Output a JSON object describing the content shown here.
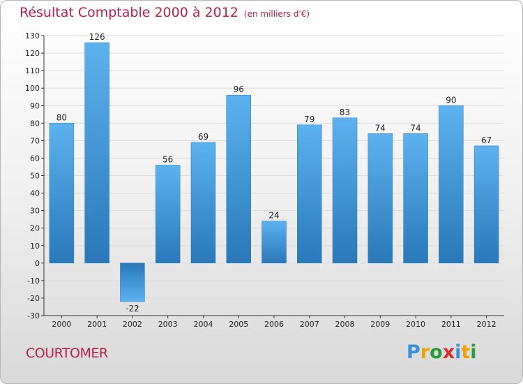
{
  "title": "Résultat Comptable 2000 à 2012",
  "subtitle": "(en milliers d'€)",
  "place": "COURTOMER",
  "logo": {
    "letters": [
      "P",
      "r",
      "o",
      "x",
      "i",
      "t",
      "i"
    ],
    "colors": [
      "#3a8fd8",
      "#f0a000",
      "#2a9a3a",
      "#d83030",
      "#3a8fd8",
      "#f0a000",
      "#2a9a3a"
    ]
  },
  "chart_data": {
    "type": "bar",
    "title": "Résultat Comptable 2000 à 2012",
    "xlabel": "",
    "ylabel": "",
    "ylim": [
      -30,
      130
    ],
    "yticks": [
      -30,
      -20,
      -10,
      0,
      10,
      20,
      30,
      40,
      50,
      60,
      70,
      80,
      90,
      100,
      110,
      120,
      130
    ],
    "categories": [
      "2000",
      "2001",
      "2002",
      "2003",
      "2004",
      "2005",
      "2006",
      "2007",
      "2008",
      "2009",
      "2010",
      "2011",
      "2012"
    ],
    "values": [
      80,
      126,
      -22,
      56,
      69,
      96,
      24,
      79,
      83,
      74,
      74,
      90,
      67
    ],
    "bar_color": "#3d97db"
  }
}
